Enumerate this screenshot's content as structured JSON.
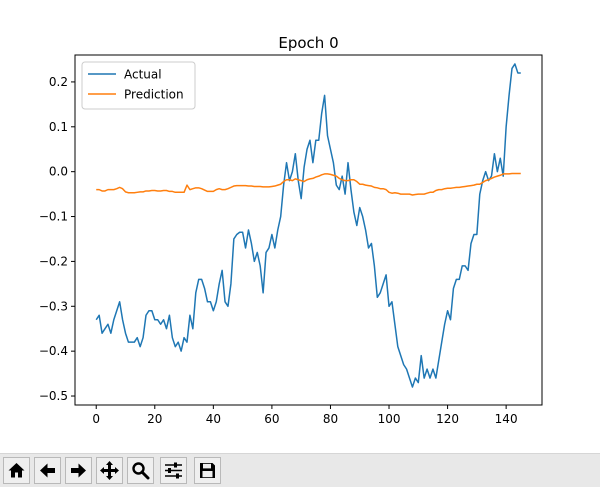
{
  "window": {
    "toolbar": {
      "buttons": [
        {
          "name": "home",
          "icon": "home-icon"
        },
        {
          "name": "back",
          "icon": "arrow-left-icon"
        },
        {
          "name": "forward",
          "icon": "arrow-right-icon"
        },
        {
          "name": "pan",
          "icon": "move-icon"
        },
        {
          "name": "zoom",
          "icon": "magnifier-icon"
        },
        {
          "name": "configure-subplots",
          "icon": "sliders-icon"
        },
        {
          "name": "save",
          "icon": "floppy-disk-icon"
        }
      ]
    }
  },
  "chart_data": {
    "type": "line",
    "title": "Epoch 0",
    "xlabel": "",
    "ylabel": "",
    "xlim": [
      -7.25,
      152.25
    ],
    "ylim": [
      -0.52,
      0.26
    ],
    "xticks": [
      0,
      20,
      40,
      60,
      80,
      100,
      120,
      140
    ],
    "yticks": [
      -0.5,
      -0.4,
      -0.3,
      -0.2,
      -0.1,
      0.0,
      0.1,
      0.2
    ],
    "xtick_labels": [
      "0",
      "20",
      "40",
      "60",
      "80",
      "100",
      "120",
      "140"
    ],
    "ytick_labels": [
      "−0.5",
      "−0.4",
      "−0.3",
      "−0.2",
      "−0.1",
      "0.0",
      "0.1",
      "0.2"
    ],
    "grid": false,
    "legend_position": "top-left",
    "series": [
      {
        "name": "Actual",
        "color": "#1f77b4",
        "x": [
          0,
          1,
          2,
          3,
          4,
          5,
          6,
          7,
          8,
          9,
          10,
          11,
          12,
          13,
          14,
          15,
          16,
          17,
          18,
          19,
          20,
          21,
          22,
          23,
          24,
          25,
          26,
          27,
          28,
          29,
          30,
          31,
          32,
          33,
          34,
          35,
          36,
          37,
          38,
          39,
          40,
          41,
          42,
          43,
          44,
          45,
          46,
          47,
          48,
          49,
          50,
          51,
          52,
          53,
          54,
          55,
          56,
          57,
          58,
          59,
          60,
          61,
          62,
          63,
          64,
          65,
          66,
          67,
          68,
          69,
          70,
          71,
          72,
          73,
          74,
          75,
          76,
          77,
          78,
          79,
          80,
          81,
          82,
          83,
          84,
          85,
          86,
          87,
          88,
          89,
          90,
          91,
          92,
          93,
          94,
          95,
          96,
          97,
          98,
          99,
          100,
          101,
          102,
          103,
          104,
          105,
          106,
          107,
          108,
          109,
          110,
          111,
          112,
          113,
          114,
          115,
          116,
          117,
          118,
          119,
          120,
          121,
          122,
          123,
          124,
          125,
          126,
          127,
          128,
          129,
          130,
          131,
          132,
          133,
          134,
          135,
          136,
          137,
          138,
          139,
          140,
          141,
          142,
          143,
          144,
          145
        ],
        "y": [
          -0.33,
          -0.32,
          -0.36,
          -0.35,
          -0.34,
          -0.36,
          -0.33,
          -0.31,
          -0.29,
          -0.33,
          -0.36,
          -0.38,
          -0.38,
          -0.38,
          -0.37,
          -0.39,
          -0.37,
          -0.32,
          -0.31,
          -0.31,
          -0.33,
          -0.33,
          -0.34,
          -0.33,
          -0.35,
          -0.32,
          -0.37,
          -0.39,
          -0.38,
          -0.4,
          -0.37,
          -0.38,
          -0.32,
          -0.35,
          -0.27,
          -0.24,
          -0.24,
          -0.26,
          -0.29,
          -0.29,
          -0.31,
          -0.29,
          -0.25,
          -0.22,
          -0.29,
          -0.3,
          -0.25,
          -0.15,
          -0.14,
          -0.135,
          -0.135,
          -0.17,
          -0.13,
          -0.16,
          -0.2,
          -0.18,
          -0.21,
          -0.27,
          -0.18,
          -0.17,
          -0.14,
          -0.17,
          -0.13,
          -0.1,
          -0.03,
          0.02,
          -0.02,
          0.0,
          0.04,
          -0.02,
          -0.06,
          0.01,
          0.05,
          0.07,
          0.02,
          0.07,
          0.07,
          0.13,
          0.17,
          0.08,
          0.05,
          0.02,
          -0.03,
          -0.04,
          -0.01,
          -0.05,
          0.02,
          -0.04,
          -0.09,
          -0.12,
          -0.08,
          -0.1,
          -0.13,
          -0.17,
          -0.16,
          -0.21,
          -0.28,
          -0.27,
          -0.25,
          -0.23,
          -0.3,
          -0.29,
          -0.34,
          -0.39,
          -0.41,
          -0.43,
          -0.44,
          -0.46,
          -0.48,
          -0.46,
          -0.47,
          -0.41,
          -0.46,
          -0.44,
          -0.46,
          -0.44,
          -0.46,
          -0.42,
          -0.38,
          -0.34,
          -0.31,
          -0.33,
          -0.26,
          -0.24,
          -0.24,
          -0.21,
          -0.21,
          -0.22,
          -0.16,
          -0.14,
          -0.14,
          -0.05,
          -0.02,
          0.0,
          -0.02,
          -0.01,
          0.04,
          0.0,
          0.03,
          -0.01,
          0.1,
          0.17,
          0.23,
          0.24,
          0.22,
          0.22
        ]
      },
      {
        "name": "Prediction",
        "color": "#ff7f0e",
        "x": [
          0,
          1,
          2,
          3,
          4,
          5,
          6,
          7,
          8,
          9,
          10,
          11,
          12,
          13,
          14,
          15,
          16,
          17,
          18,
          19,
          20,
          21,
          22,
          23,
          24,
          25,
          26,
          27,
          28,
          29,
          30,
          31,
          32,
          33,
          34,
          35,
          36,
          37,
          38,
          39,
          40,
          41,
          42,
          43,
          44,
          45,
          46,
          47,
          48,
          49,
          50,
          51,
          52,
          53,
          54,
          55,
          56,
          57,
          58,
          59,
          60,
          61,
          62,
          63,
          64,
          65,
          66,
          67,
          68,
          69,
          70,
          71,
          72,
          73,
          74,
          75,
          76,
          77,
          78,
          79,
          80,
          81,
          82,
          83,
          84,
          85,
          86,
          87,
          88,
          89,
          90,
          91,
          92,
          93,
          94,
          95,
          96,
          97,
          98,
          99,
          100,
          101,
          102,
          103,
          104,
          105,
          106,
          107,
          108,
          109,
          110,
          111,
          112,
          113,
          114,
          115,
          116,
          117,
          118,
          119,
          120,
          121,
          122,
          123,
          124,
          125,
          126,
          127,
          128,
          129,
          130,
          131,
          132,
          133,
          134,
          135,
          136,
          137,
          138,
          139,
          140,
          141,
          142,
          143,
          144,
          145
        ],
        "y": [
          -0.04,
          -0.04,
          -0.043,
          -0.043,
          -0.04,
          -0.04,
          -0.04,
          -0.038,
          -0.035,
          -0.038,
          -0.045,
          -0.047,
          -0.047,
          -0.047,
          -0.046,
          -0.045,
          -0.045,
          -0.043,
          -0.043,
          -0.042,
          -0.042,
          -0.043,
          -0.043,
          -0.042,
          -0.042,
          -0.044,
          -0.044,
          -0.046,
          -0.046,
          -0.046,
          -0.046,
          -0.03,
          -0.04,
          -0.038,
          -0.036,
          -0.036,
          -0.038,
          -0.041,
          -0.044,
          -0.044,
          -0.044,
          -0.04,
          -0.038,
          -0.04,
          -0.04,
          -0.038,
          -0.035,
          -0.032,
          -0.031,
          -0.031,
          -0.031,
          -0.031,
          -0.032,
          -0.032,
          -0.033,
          -0.033,
          -0.033,
          -0.034,
          -0.034,
          -0.034,
          -0.033,
          -0.032,
          -0.03,
          -0.028,
          -0.022,
          -0.018,
          -0.018,
          -0.02,
          -0.016,
          -0.018,
          -0.02,
          -0.022,
          -0.018,
          -0.016,
          -0.015,
          -0.012,
          -0.01,
          -0.007,
          -0.005,
          -0.005,
          -0.006,
          -0.008,
          -0.01,
          -0.015,
          -0.018,
          -0.02,
          -0.02,
          -0.018,
          -0.018,
          -0.022,
          -0.028,
          -0.028,
          -0.03,
          -0.031,
          -0.032,
          -0.035,
          -0.036,
          -0.038,
          -0.038,
          -0.04,
          -0.046,
          -0.048,
          -0.047,
          -0.048,
          -0.05,
          -0.05,
          -0.05,
          -0.05,
          -0.052,
          -0.051,
          -0.05,
          -0.05,
          -0.05,
          -0.048,
          -0.046,
          -0.046,
          -0.042,
          -0.04,
          -0.04,
          -0.038,
          -0.037,
          -0.037,
          -0.036,
          -0.035,
          -0.035,
          -0.034,
          -0.033,
          -0.032,
          -0.031,
          -0.03,
          -0.028,
          -0.028,
          -0.024,
          -0.02,
          -0.018,
          -0.015,
          -0.012,
          -0.01,
          -0.008,
          -0.005,
          -0.005,
          -0.005,
          -0.004,
          -0.004,
          -0.004,
          -0.004
        ]
      }
    ]
  }
}
